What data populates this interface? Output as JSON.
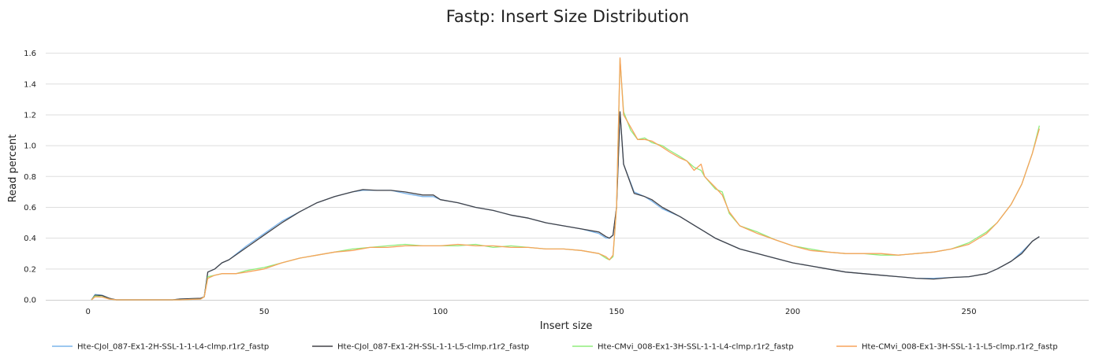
{
  "chart_data": {
    "type": "line",
    "title": "Fastp: Insert Size Distribution",
    "xlabel": "Insert size",
    "ylabel": "Read percent",
    "xlim": [
      -12,
      284
    ],
    "ylim": [
      0,
      1.7
    ],
    "xticks": [
      0,
      50,
      100,
      150,
      200,
      250
    ],
    "yticks": [
      0.0,
      0.2,
      0.4,
      0.6,
      0.8,
      1.0,
      1.2,
      1.4,
      1.6
    ],
    "grid": true,
    "legend_position": "bottom",
    "series": [
      {
        "name": "Hte-CJol_087-Ex1-2H-SSL-1-1-L4-clmp.r1r2_fastp",
        "color": "#7cb5ec",
        "points": [
          [
            1,
            0.0
          ],
          [
            2,
            0.035
          ],
          [
            4,
            0.03
          ],
          [
            6,
            0.01
          ],
          [
            8,
            0.0
          ],
          [
            24,
            0.0
          ],
          [
            26,
            0.005
          ],
          [
            32,
            0.01
          ],
          [
            33,
            0.02
          ],
          [
            34,
            0.18
          ],
          [
            36,
            0.2
          ],
          [
            38,
            0.24
          ],
          [
            40,
            0.26
          ],
          [
            45,
            0.35
          ],
          [
            50,
            0.43
          ],
          [
            55,
            0.51
          ],
          [
            60,
            0.57
          ],
          [
            65,
            0.63
          ],
          [
            70,
            0.67
          ],
          [
            75,
            0.7
          ],
          [
            78,
            0.71
          ],
          [
            82,
            0.71
          ],
          [
            86,
            0.71
          ],
          [
            90,
            0.69
          ],
          [
            95,
            0.67
          ],
          [
            98,
            0.67
          ],
          [
            100,
            0.65
          ],
          [
            105,
            0.63
          ],
          [
            110,
            0.6
          ],
          [
            115,
            0.58
          ],
          [
            120,
            0.55
          ],
          [
            125,
            0.53
          ],
          [
            130,
            0.5
          ],
          [
            135,
            0.48
          ],
          [
            140,
            0.46
          ],
          [
            145,
            0.43
          ],
          [
            147,
            0.4
          ],
          [
            148,
            0.4
          ],
          [
            149,
            0.42
          ],
          [
            150,
            0.6
          ],
          [
            151,
            1.22
          ],
          [
            152,
            0.88
          ],
          [
            155,
            0.7
          ],
          [
            158,
            0.67
          ],
          [
            160,
            0.64
          ],
          [
            163,
            0.59
          ],
          [
            168,
            0.54
          ],
          [
            173,
            0.47
          ],
          [
            178,
            0.4
          ],
          [
            185,
            0.33
          ],
          [
            190,
            0.3
          ],
          [
            195,
            0.27
          ],
          [
            200,
            0.24
          ],
          [
            205,
            0.22
          ],
          [
            210,
            0.2
          ],
          [
            215,
            0.18
          ],
          [
            220,
            0.17
          ],
          [
            225,
            0.16
          ],
          [
            230,
            0.15
          ],
          [
            235,
            0.14
          ],
          [
            240,
            0.14
          ],
          [
            245,
            0.145
          ],
          [
            250,
            0.15
          ],
          [
            255,
            0.17
          ],
          [
            258,
            0.2
          ],
          [
            262,
            0.25
          ],
          [
            265,
            0.31
          ],
          [
            268,
            0.38
          ],
          [
            270,
            0.41
          ]
        ]
      },
      {
        "name": "Hte-CJol_087-Ex1-2H-SSL-1-1-L5-clmp.r1r2_fastp",
        "color": "#434348",
        "points": [
          [
            1,
            0.0
          ],
          [
            2,
            0.03
          ],
          [
            4,
            0.028
          ],
          [
            6,
            0.01
          ],
          [
            8,
            0.0
          ],
          [
            24,
            0.0
          ],
          [
            26,
            0.005
          ],
          [
            32,
            0.01
          ],
          [
            33,
            0.02
          ],
          [
            34,
            0.18
          ],
          [
            36,
            0.2
          ],
          [
            38,
            0.24
          ],
          [
            40,
            0.26
          ],
          [
            45,
            0.34
          ],
          [
            50,
            0.42
          ],
          [
            55,
            0.5
          ],
          [
            60,
            0.57
          ],
          [
            65,
            0.63
          ],
          [
            70,
            0.67
          ],
          [
            75,
            0.7
          ],
          [
            78,
            0.715
          ],
          [
            82,
            0.71
          ],
          [
            86,
            0.71
          ],
          [
            90,
            0.7
          ],
          [
            95,
            0.68
          ],
          [
            98,
            0.68
          ],
          [
            100,
            0.65
          ],
          [
            105,
            0.63
          ],
          [
            110,
            0.6
          ],
          [
            115,
            0.58
          ],
          [
            120,
            0.55
          ],
          [
            125,
            0.53
          ],
          [
            130,
            0.5
          ],
          [
            135,
            0.48
          ],
          [
            140,
            0.46
          ],
          [
            145,
            0.44
          ],
          [
            147,
            0.41
          ],
          [
            148,
            0.4
          ],
          [
            149,
            0.42
          ],
          [
            150,
            0.6
          ],
          [
            151,
            1.22
          ],
          [
            152,
            0.88
          ],
          [
            155,
            0.69
          ],
          [
            158,
            0.67
          ],
          [
            160,
            0.65
          ],
          [
            163,
            0.6
          ],
          [
            168,
            0.54
          ],
          [
            173,
            0.47
          ],
          [
            178,
            0.4
          ],
          [
            185,
            0.33
          ],
          [
            190,
            0.3
          ],
          [
            195,
            0.27
          ],
          [
            200,
            0.24
          ],
          [
            205,
            0.22
          ],
          [
            210,
            0.2
          ],
          [
            215,
            0.18
          ],
          [
            220,
            0.17
          ],
          [
            225,
            0.16
          ],
          [
            230,
            0.15
          ],
          [
            235,
            0.14
          ],
          [
            240,
            0.135
          ],
          [
            245,
            0.145
          ],
          [
            250,
            0.15
          ],
          [
            255,
            0.17
          ],
          [
            258,
            0.2
          ],
          [
            262,
            0.25
          ],
          [
            265,
            0.3
          ],
          [
            268,
            0.38
          ],
          [
            270,
            0.41
          ]
        ]
      },
      {
        "name": "Hte-CMvi_008-Ex1-3H-SSL-1-1-L4-clmp.r1r2_fastp",
        "color": "#90ed7d",
        "points": [
          [
            1,
            0.0
          ],
          [
            2,
            0.025
          ],
          [
            4,
            0.02
          ],
          [
            6,
            0.005
          ],
          [
            8,
            0.0
          ],
          [
            24,
            0.0
          ],
          [
            26,
            0.0
          ],
          [
            32,
            0.005
          ],
          [
            33,
            0.02
          ],
          [
            34,
            0.15
          ],
          [
            36,
            0.16
          ],
          [
            38,
            0.17
          ],
          [
            42,
            0.17
          ],
          [
            45,
            0.19
          ],
          [
            50,
            0.21
          ],
          [
            55,
            0.24
          ],
          [
            60,
            0.27
          ],
          [
            65,
            0.29
          ],
          [
            70,
            0.31
          ],
          [
            75,
            0.33
          ],
          [
            80,
            0.34
          ],
          [
            85,
            0.35
          ],
          [
            90,
            0.36
          ],
          [
            95,
            0.35
          ],
          [
            100,
            0.35
          ],
          [
            105,
            0.35
          ],
          [
            110,
            0.36
          ],
          [
            115,
            0.34
          ],
          [
            120,
            0.35
          ],
          [
            125,
            0.34
          ],
          [
            130,
            0.33
          ],
          [
            135,
            0.33
          ],
          [
            140,
            0.32
          ],
          [
            145,
            0.3
          ],
          [
            147,
            0.27
          ],
          [
            148,
            0.26
          ],
          [
            149,
            0.28
          ],
          [
            150,
            0.6
          ],
          [
            151,
            1.56
          ],
          [
            152,
            1.22
          ],
          [
            154,
            1.1
          ],
          [
            156,
            1.04
          ],
          [
            158,
            1.05
          ],
          [
            160,
            1.02
          ],
          [
            163,
            1.0
          ],
          [
            165,
            0.97
          ],
          [
            168,
            0.93
          ],
          [
            170,
            0.9
          ],
          [
            172,
            0.86
          ],
          [
            174,
            0.84
          ],
          [
            175,
            0.8
          ],
          [
            178,
            0.72
          ],
          [
            180,
            0.7
          ],
          [
            182,
            0.56
          ],
          [
            185,
            0.48
          ],
          [
            190,
            0.44
          ],
          [
            195,
            0.39
          ],
          [
            200,
            0.35
          ],
          [
            205,
            0.33
          ],
          [
            210,
            0.31
          ],
          [
            215,
            0.3
          ],
          [
            220,
            0.3
          ],
          [
            225,
            0.29
          ],
          [
            230,
            0.29
          ],
          [
            235,
            0.3
          ],
          [
            240,
            0.31
          ],
          [
            245,
            0.33
          ],
          [
            250,
            0.37
          ],
          [
            255,
            0.44
          ],
          [
            258,
            0.5
          ],
          [
            262,
            0.62
          ],
          [
            265,
            0.75
          ],
          [
            268,
            0.95
          ],
          [
            270,
            1.13
          ]
        ]
      },
      {
        "name": "Hte-CMvi_008-Ex1-3H-SSL-1-1-L5-clmp.r1r2_fastp",
        "color": "#f7a35c",
        "points": [
          [
            1,
            0.0
          ],
          [
            2,
            0.02
          ],
          [
            4,
            0.018
          ],
          [
            6,
            0.005
          ],
          [
            8,
            0.0
          ],
          [
            24,
            0.0
          ],
          [
            26,
            0.0
          ],
          [
            32,
            0.005
          ],
          [
            33,
            0.02
          ],
          [
            34,
            0.14
          ],
          [
            36,
            0.16
          ],
          [
            38,
            0.17
          ],
          [
            42,
            0.17
          ],
          [
            45,
            0.18
          ],
          [
            50,
            0.2
          ],
          [
            55,
            0.24
          ],
          [
            60,
            0.27
          ],
          [
            65,
            0.29
          ],
          [
            70,
            0.31
          ],
          [
            75,
            0.32
          ],
          [
            80,
            0.34
          ],
          [
            85,
            0.34
          ],
          [
            90,
            0.35
          ],
          [
            95,
            0.35
          ],
          [
            100,
            0.35
          ],
          [
            105,
            0.36
          ],
          [
            110,
            0.35
          ],
          [
            115,
            0.35
          ],
          [
            120,
            0.34
          ],
          [
            125,
            0.34
          ],
          [
            130,
            0.33
          ],
          [
            135,
            0.33
          ],
          [
            140,
            0.32
          ],
          [
            145,
            0.3
          ],
          [
            147,
            0.28
          ],
          [
            148,
            0.26
          ],
          [
            149,
            0.29
          ],
          [
            150,
            0.6
          ],
          [
            151,
            1.57
          ],
          [
            152,
            1.2
          ],
          [
            154,
            1.12
          ],
          [
            156,
            1.04
          ],
          [
            158,
            1.04
          ],
          [
            160,
            1.03
          ],
          [
            163,
            0.99
          ],
          [
            165,
            0.96
          ],
          [
            168,
            0.92
          ],
          [
            170,
            0.9
          ],
          [
            172,
            0.84
          ],
          [
            174,
            0.88
          ],
          [
            175,
            0.8
          ],
          [
            178,
            0.73
          ],
          [
            180,
            0.68
          ],
          [
            182,
            0.57
          ],
          [
            185,
            0.48
          ],
          [
            190,
            0.43
          ],
          [
            195,
            0.39
          ],
          [
            200,
            0.35
          ],
          [
            205,
            0.32
          ],
          [
            210,
            0.31
          ],
          [
            215,
            0.3
          ],
          [
            220,
            0.3
          ],
          [
            225,
            0.3
          ],
          [
            230,
            0.29
          ],
          [
            235,
            0.3
          ],
          [
            240,
            0.31
          ],
          [
            245,
            0.33
          ],
          [
            250,
            0.36
          ],
          [
            255,
            0.43
          ],
          [
            258,
            0.5
          ],
          [
            262,
            0.62
          ],
          [
            265,
            0.75
          ],
          [
            268,
            0.95
          ],
          [
            270,
            1.11
          ]
        ]
      }
    ]
  }
}
